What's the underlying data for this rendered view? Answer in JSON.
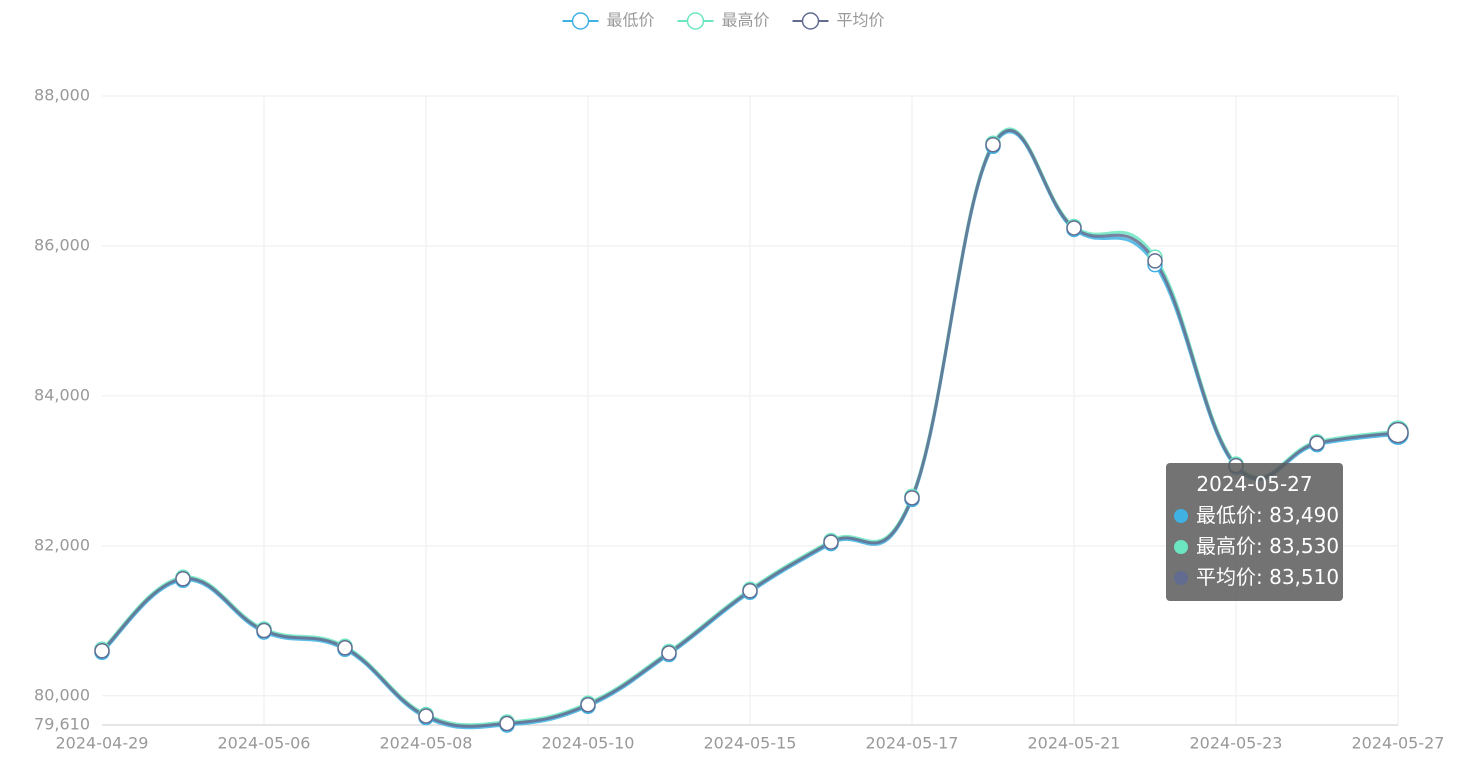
{
  "chart_data": {
    "type": "line",
    "categories": [
      "2024-04-29",
      null,
      "2024-05-06",
      null,
      "2024-05-08",
      null,
      "2024-05-10",
      null,
      "2024-05-15",
      null,
      "2024-05-17",
      null,
      "2024-05-21",
      null,
      "2024-05-23",
      null,
      "2024-05-27"
    ],
    "series": [
      {
        "name": "最低价",
        "color": "#3fb1e3",
        "values": [
          80580,
          81540,
          80850,
          80620,
          79710,
          79610,
          79860,
          80550,
          81380,
          82030,
          82620,
          87330,
          86220,
          85750,
          83050,
          83350,
          83490
        ]
      },
      {
        "name": "最高价",
        "color": "#6be6c1",
        "values": [
          80620,
          81580,
          80890,
          80660,
          79750,
          79650,
          79900,
          80590,
          81420,
          82070,
          82660,
          87370,
          86260,
          85850,
          83090,
          83390,
          83530
        ]
      },
      {
        "name": "平均价",
        "color": "#626c91",
        "values": [
          80600,
          81560,
          80870,
          80640,
          79730,
          79630,
          79880,
          80570,
          81400,
          82050,
          82640,
          87350,
          86240,
          85800,
          83070,
          83370,
          83510
        ]
      }
    ],
    "ylim": [
      79610,
      88000
    ],
    "yticks": [
      {
        "value": 79610,
        "label": "79,610"
      },
      {
        "value": 80000,
        "label": "80,000"
      },
      {
        "value": 82000,
        "label": "82,000"
      },
      {
        "value": 84000,
        "label": "84,000"
      },
      {
        "value": 86000,
        "label": "86,000"
      },
      {
        "value": 88000,
        "label": "88,000"
      }
    ],
    "grid": true,
    "legend": "top",
    "tooltip": {
      "index": 16,
      "rows": [
        "最低价: 83,490",
        "最高价: 83,530",
        "平均价: 83,510"
      ]
    }
  }
}
